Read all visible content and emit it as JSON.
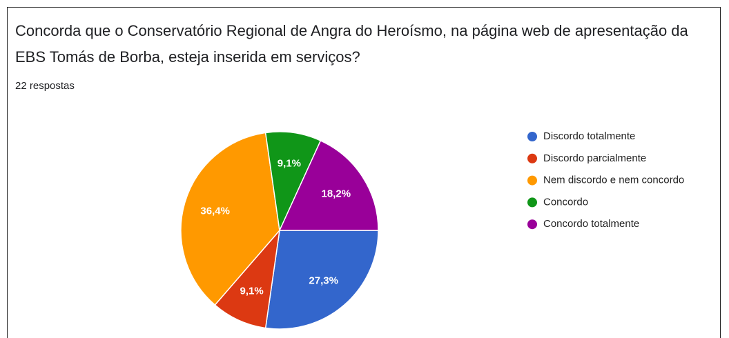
{
  "chart_data": {
    "type": "pie",
    "title": "Concorda que o Conservatório Regional de Angra do Heroísmo, na página web de apresentação da EBS Tomás de Borba, esteja inserida em serviços?",
    "subtitle": "22 respostas",
    "categories": [
      "Discordo totalmente",
      "Discordo parcialmente",
      "Nem discordo e nem concordo",
      "Concordo",
      "Concordo totalmente"
    ],
    "values": [
      27.3,
      9.1,
      36.4,
      9.1,
      18.2
    ],
    "value_labels": [
      "27,3%",
      "9,1%",
      "36,4%",
      "9,1%",
      "18,2%"
    ],
    "colors": [
      "#3366cc",
      "#dc3912",
      "#ff9900",
      "#109618",
      "#990099"
    ],
    "legend": "right"
  }
}
